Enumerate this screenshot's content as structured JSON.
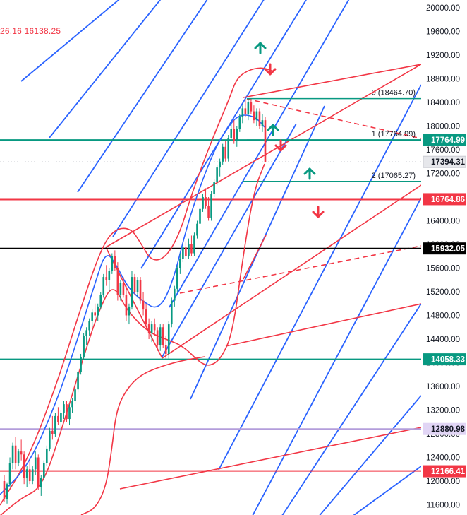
{
  "header": {
    "ohlc_text": "26.16 16138.25"
  },
  "chart_data": {
    "type": "candlestick",
    "y_axis": {
      "range": [
        11420,
        20060
      ],
      "ticks": [
        "20000.00",
        "19600.00",
        "19200.00",
        "18800.00",
        "18400.00",
        "18000.00",
        "17600.00",
        "17200.00",
        "16800.00",
        "16400.00",
        "16000.00",
        "15600.00",
        "15200.00",
        "14800.00",
        "14400.00",
        "14000.00",
        "13600.00",
        "13200.00",
        "12800.00",
        "12400.00",
        "12000.00",
        "11600.00"
      ]
    },
    "horizontal_levels": [
      {
        "value": 17764.99,
        "label": "17764.99",
        "color": "#089981",
        "width": 2,
        "style": "solid"
      },
      {
        "value": 16764.86,
        "label": "16764.86",
        "color": "#f23645",
        "width": 3,
        "style": "solid"
      },
      {
        "value": 15932.05,
        "label": "15932.05",
        "color": "#000000",
        "width": 2,
        "style": "solid"
      },
      {
        "value": 14058.33,
        "label": "14058.33",
        "color": "#089981",
        "width": 2,
        "style": "solid"
      },
      {
        "value": 12880.98,
        "label": "12880.98",
        "color": "#b39ddb",
        "width": 2,
        "style": "solid"
      },
      {
        "value": 12166.41,
        "label": "12166.41",
        "color": "#f23645",
        "width": 1,
        "style": "solid"
      }
    ],
    "current_price": {
      "value": 17394.31,
      "label": "17394.31"
    },
    "fibonacci": [
      {
        "level": "0",
        "value": 18464.7,
        "label": "0 (18464.70)"
      },
      {
        "level": "1",
        "value": 17764.99,
        "label": "1 (17764.99)"
      },
      {
        "level": "2",
        "value": 17065.27,
        "label": "2 (17065.27)"
      }
    ],
    "arrows": [
      {
        "direction": "up",
        "color": "#089981"
      },
      {
        "direction": "down",
        "color": "#f23645"
      },
      {
        "direction": "up",
        "color": "#089981"
      },
      {
        "direction": "down",
        "color": "#f23645"
      },
      {
        "direction": "up",
        "color": "#089981"
      },
      {
        "direction": "down",
        "color": "#f23645"
      }
    ],
    "colors": {
      "up": "#089981",
      "down": "#f23645",
      "channel_blue": "#2962ff",
      "band_red": "#f23645",
      "fib": "#089981",
      "axis_text": "#131722"
    },
    "candles": [
      [
        12000,
        12100,
        11650,
        11700
      ],
      [
        11700,
        11980,
        11620,
        11950
      ],
      [
        11950,
        12400,
        11900,
        12300
      ],
      [
        12300,
        12650,
        12200,
        12600
      ],
      [
        12600,
        12750,
        12200,
        12300
      ],
      [
        12300,
        12550,
        12250,
        12500
      ],
      [
        12500,
        12700,
        12350,
        12450
      ],
      [
        12450,
        12500,
        11950,
        12050
      ],
      [
        12050,
        12250,
        11900,
        12200
      ],
      [
        12200,
        12350,
        11950,
        12000
      ],
      [
        12000,
        12250,
        11950,
        12200
      ],
      [
        12200,
        12500,
        12100,
        12400
      ],
      [
        12400,
        12450,
        11850,
        11900
      ],
      [
        11900,
        12100,
        11750,
        12050
      ],
      [
        12050,
        12350,
        12000,
        12300
      ],
      [
        12300,
        12600,
        12250,
        12550
      ],
      [
        12550,
        12900,
        12500,
        12850
      ],
      [
        12850,
        13100,
        12700,
        12800
      ],
      [
        12800,
        13150,
        12750,
        13100
      ],
      [
        13100,
        13250,
        12950,
        13000
      ],
      [
        13000,
        13200,
        12850,
        13150
      ],
      [
        13150,
        13350,
        13050,
        13300
      ],
      [
        13300,
        13350,
        13000,
        13050
      ],
      [
        13050,
        13300,
        12950,
        13250
      ],
      [
        13250,
        13400,
        13150,
        13350
      ],
      [
        13350,
        13600,
        13300,
        13550
      ],
      [
        13550,
        13900,
        13500,
        13850
      ],
      [
        13850,
        14150,
        13800,
        14100
      ],
      [
        14100,
        14500,
        14050,
        14450
      ],
      [
        14450,
        14600,
        14300,
        14550
      ],
      [
        14550,
        14750,
        14450,
        14700
      ],
      [
        14700,
        14900,
        14600,
        14850
      ],
      [
        14850,
        15000,
        14750,
        14800
      ],
      [
        14800,
        15000,
        14700,
        14950
      ],
      [
        14950,
        15200,
        14900,
        15150
      ],
      [
        15150,
        15500,
        15100,
        15450
      ],
      [
        15450,
        15650,
        15300,
        15400
      ],
      [
        15400,
        15600,
        15200,
        15550
      ],
      [
        15550,
        15850,
        15500,
        15800
      ],
      [
        15800,
        15900,
        15550,
        15600
      ],
      [
        15600,
        15700,
        15050,
        15150
      ],
      [
        15150,
        15400,
        15050,
        15350
      ],
      [
        15350,
        15450,
        15100,
        15150
      ],
      [
        15150,
        15300,
        14700,
        14800
      ],
      [
        14800,
        15000,
        14650,
        14950
      ],
      [
        14950,
        15550,
        14900,
        15450
      ],
      [
        15450,
        15500,
        15150,
        15200
      ],
      [
        15200,
        15450,
        15100,
        15400
      ],
      [
        15400,
        15450,
        15000,
        15050
      ],
      [
        15050,
        15200,
        14800,
        14900
      ],
      [
        14900,
        15000,
        14600,
        14650
      ],
      [
        14650,
        14750,
        14400,
        14500
      ],
      [
        14500,
        14700,
        14350,
        14650
      ],
      [
        14650,
        14750,
        14450,
        14550
      ],
      [
        14550,
        14600,
        14200,
        14300
      ],
      [
        14300,
        14650,
        14200,
        14600
      ],
      [
        14600,
        14650,
        14250,
        14300
      ],
      [
        14300,
        14450,
        14070,
        14150
      ],
      [
        14150,
        14700,
        14070,
        14650
      ],
      [
        14650,
        15100,
        14600,
        15050
      ],
      [
        15050,
        15300,
        14950,
        15250
      ],
      [
        15250,
        15650,
        15200,
        15600
      ],
      [
        15600,
        15850,
        15500,
        15750
      ],
      [
        15750,
        16000,
        15700,
        15950
      ],
      [
        15950,
        16050,
        15750,
        15800
      ],
      [
        15800,
        16100,
        15750,
        16000
      ],
      [
        16000,
        16150,
        15800,
        15850
      ],
      [
        15850,
        16200,
        15800,
        16150
      ],
      [
        16150,
        16400,
        16100,
        16350
      ],
      [
        16350,
        16650,
        16300,
        16600
      ],
      [
        16600,
        16850,
        16550,
        16800
      ],
      [
        16800,
        16950,
        16600,
        16650
      ],
      [
        16650,
        16800,
        16400,
        16450
      ],
      [
        16450,
        16900,
        16400,
        16850
      ],
      [
        16850,
        17100,
        16800,
        17050
      ],
      [
        17050,
        17350,
        17000,
        17300
      ],
      [
        17300,
        17450,
        17150,
        17400
      ],
      [
        17400,
        17700,
        17350,
        17650
      ],
      [
        17650,
        17750,
        17400,
        17450
      ],
      [
        17450,
        17850,
        17400,
        17800
      ],
      [
        17800,
        18050,
        17750,
        17950
      ],
      [
        17950,
        18100,
        17700,
        17750
      ],
      [
        17750,
        18000,
        17650,
        17950
      ],
      [
        17950,
        18200,
        17900,
        18150
      ],
      [
        18150,
        18350,
        18050,
        18300
      ],
      [
        18300,
        18440,
        18150,
        18200
      ],
      [
        18200,
        18464,
        18100,
        18400
      ],
      [
        18400,
        18450,
        18200,
        18250
      ],
      [
        18250,
        18350,
        18050,
        18100
      ],
      [
        18100,
        18300,
        18000,
        18250
      ],
      [
        18250,
        18300,
        17950,
        18000
      ],
      [
        18000,
        18200,
        17900,
        18100
      ],
      [
        18100,
        18150,
        17394,
        17394
      ]
    ]
  }
}
